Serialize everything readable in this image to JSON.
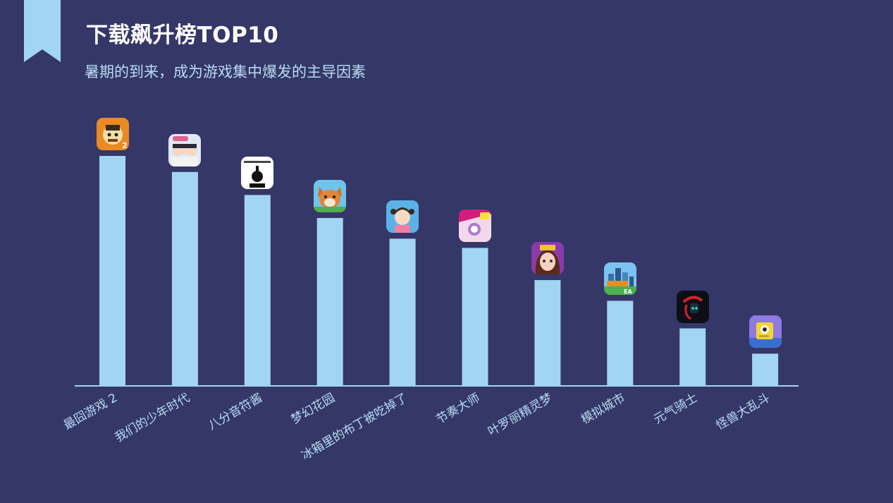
{
  "header": {
    "title": "下载飙升榜TOP10",
    "subtitle": "暑期的到来，成为游戏集中爆发的主导因素"
  },
  "colors": {
    "background": "#353768",
    "bar": "#a2d4f5",
    "axis": "#a2d4f5",
    "label": "#b9dcf3",
    "title": "#ffffff"
  },
  "chart_data": {
    "type": "bar",
    "categories": [
      "最囧游戏 2",
      "我们的少年时代",
      "八分音符酱",
      "梦幻花园",
      "冰箱里的布丁被吃掉了",
      "节奏大师",
      "叶罗丽精灵梦",
      "模拟城市",
      "元气骑士",
      "怪兽大乱斗"
    ],
    "values": [
      100,
      93,
      83,
      73,
      64,
      60,
      46,
      37,
      25,
      14
    ],
    "icons": [
      "troll-face-game-icon",
      "anime-boys-game-icon",
      "eighth-note-game-icon",
      "shiba-dog-game-icon",
      "pudding-girl-game-icon",
      "piano-rhythm-game-icon",
      "fairy-girl-game-icon",
      "city-skyline-game-icon",
      "soul-knight-game-icon",
      "monster-cube-game-icon"
    ],
    "ylim": [
      0,
      100
    ],
    "grid": false,
    "legend": "none"
  }
}
